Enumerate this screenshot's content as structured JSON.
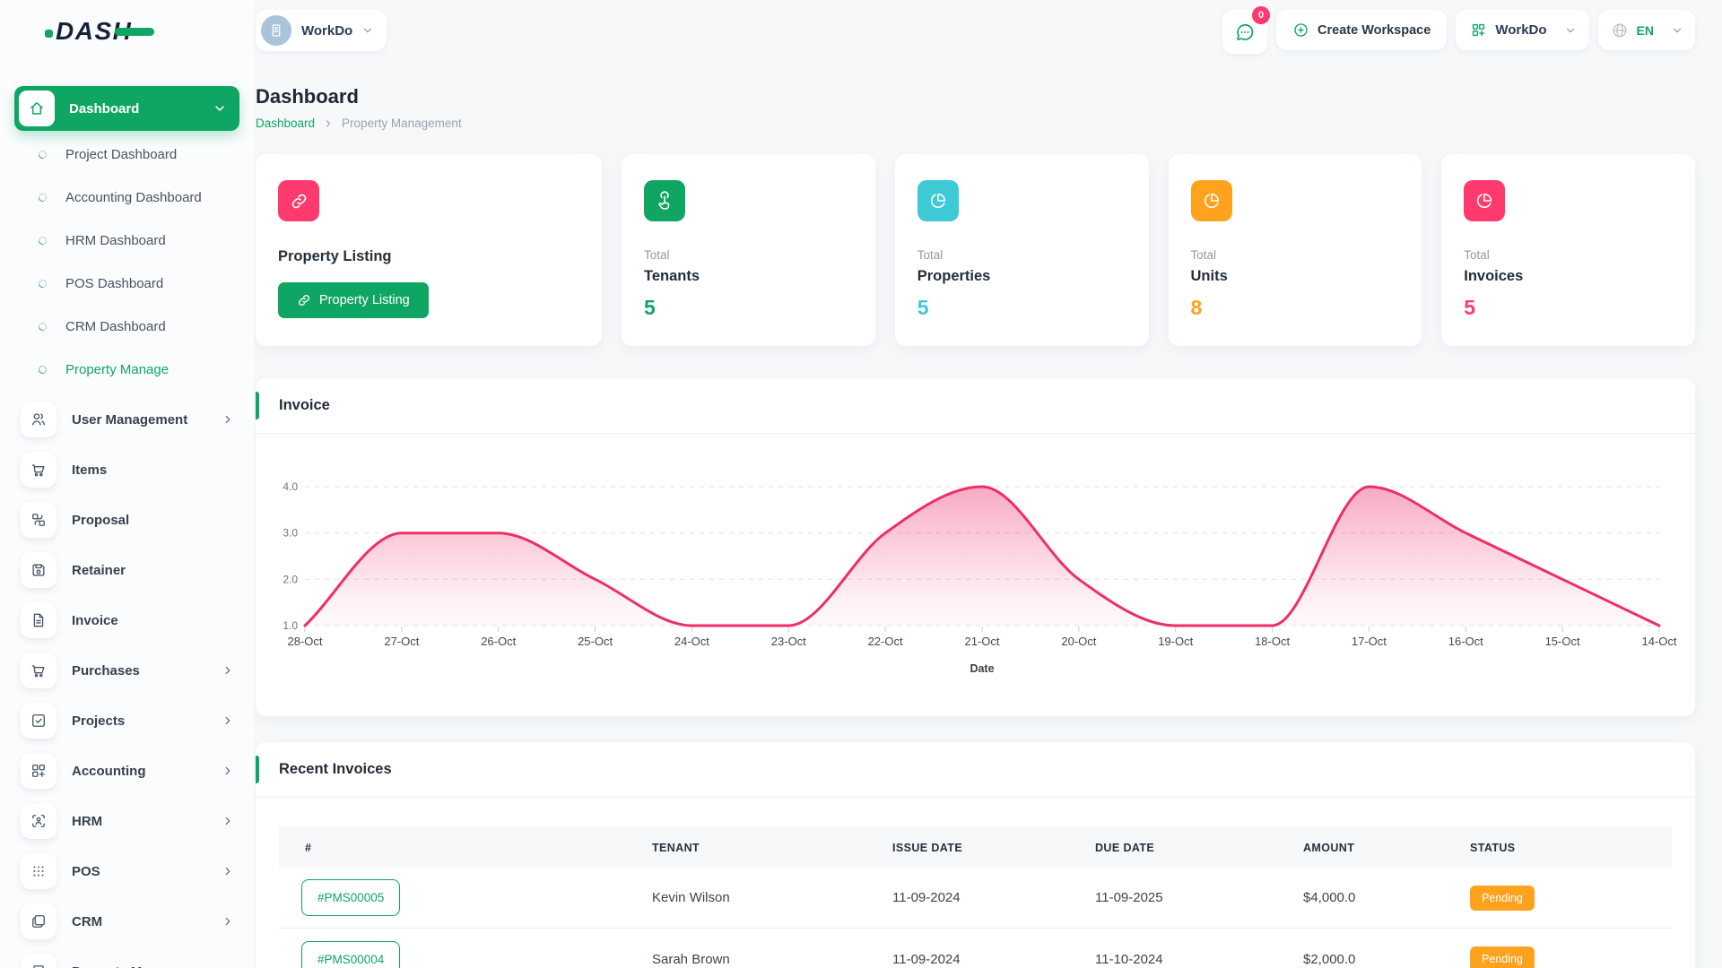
{
  "brand": {
    "logo_text": "DASH"
  },
  "topbar": {
    "workspace_label": "WorkDo",
    "messages_badge": "0",
    "create_workspace_label": "Create Workspace",
    "app_menu_label": "WorkDo",
    "language_label": "EN"
  },
  "sidebar": {
    "dashboard_label": "Dashboard",
    "dashboard_children": [
      {
        "label": "Project Dashboard",
        "active": false
      },
      {
        "label": "Accounting Dashboard",
        "active": false
      },
      {
        "label": "HRM Dashboard",
        "active": false
      },
      {
        "label": "POS Dashboard",
        "active": false
      },
      {
        "label": "CRM Dashboard",
        "active": false
      },
      {
        "label": "Property Manage",
        "active": true
      }
    ],
    "items": [
      {
        "label": "User Management",
        "icon": "users",
        "expandable": true
      },
      {
        "label": "Items",
        "icon": "cart",
        "expandable": false
      },
      {
        "label": "Proposal",
        "icon": "swap",
        "expandable": false
      },
      {
        "label": "Retainer",
        "icon": "save",
        "expandable": false
      },
      {
        "label": "Invoice",
        "icon": "file",
        "expandable": false
      },
      {
        "label": "Purchases",
        "icon": "cart",
        "expandable": true
      },
      {
        "label": "Projects",
        "icon": "checkSquare",
        "expandable": true
      },
      {
        "label": "Accounting",
        "icon": "gridPlus",
        "expandable": true
      },
      {
        "label": "HRM",
        "icon": "userScan",
        "expandable": true
      },
      {
        "label": "POS",
        "icon": "dotsGrid",
        "expandable": true
      },
      {
        "label": "CRM",
        "icon": "squares",
        "expandable": true
      },
      {
        "label": "Property Manage",
        "icon": "building",
        "expandable": true
      }
    ]
  },
  "page": {
    "title": "Dashboard",
    "breadcrumb": [
      "Dashboard",
      "Property Management"
    ]
  },
  "listing_card": {
    "title": "Property Listing",
    "button_label": "Property Listing",
    "icon": "link",
    "icon_color": "#FF3A6E"
  },
  "stat_cards": [
    {
      "prefix": "Total",
      "label": "Tenants",
      "value": "5",
      "icon": "tap",
      "color": "#0FA663"
    },
    {
      "prefix": "Total",
      "label": "Properties",
      "value": "5",
      "icon": "pie",
      "color": "#3EC9D6"
    },
    {
      "prefix": "Total",
      "label": "Units",
      "value": "8",
      "icon": "pie",
      "color": "#FFA21D"
    },
    {
      "prefix": "Total",
      "label": "Invoices",
      "value": "5",
      "icon": "pie",
      "color": "#FF3A6E"
    }
  ],
  "invoice_chart": {
    "title": "Invoice"
  },
  "chart_data": {
    "type": "area",
    "title": "Invoice",
    "x": [
      "28-Oct",
      "27-Oct",
      "26-Oct",
      "25-Oct",
      "24-Oct",
      "23-Oct",
      "22-Oct",
      "21-Oct",
      "20-Oct",
      "19-Oct",
      "18-Oct",
      "17-Oct",
      "16-Oct",
      "15-Oct",
      "14-Oct"
    ],
    "values": [
      1,
      3,
      3,
      2,
      1,
      1,
      3,
      4,
      2,
      1,
      1,
      4,
      3,
      2,
      1
    ],
    "xlabel": "Date",
    "ylim": [
      1.0,
      4.0
    ],
    "yticks": [
      4.0,
      3.0,
      2.0,
      1.0
    ],
    "grid": "dashed-horizontal",
    "legend": "none",
    "line_color": "#ED2E67",
    "fill": "pink-gradient"
  },
  "recent_invoices": {
    "title": "Recent Invoices",
    "columns": [
      "#",
      "TENANT",
      "ISSUE DATE",
      "DUE DATE",
      "AMOUNT",
      "STATUS"
    ],
    "rows": [
      {
        "id": "#PMS00005",
        "tenant": "Kevin Wilson",
        "issue_date": "11-09-2024",
        "due_date": "11-09-2025",
        "amount": "$4,000.0",
        "status": "Pending"
      },
      {
        "id": "#PMS00004",
        "tenant": "Sarah Brown",
        "issue_date": "11-09-2024",
        "due_date": "11-10-2024",
        "amount": "$2,000.0",
        "status": "Pending"
      }
    ],
    "status_color": "#FFA21D"
  },
  "colors": {
    "primary_green": "#0FA663",
    "pink": "#FF3A6E",
    "cyan": "#3EC9D6",
    "orange": "#FFA21D",
    "chart_line": "#ED2E67",
    "navy": "#1E2A3B"
  }
}
